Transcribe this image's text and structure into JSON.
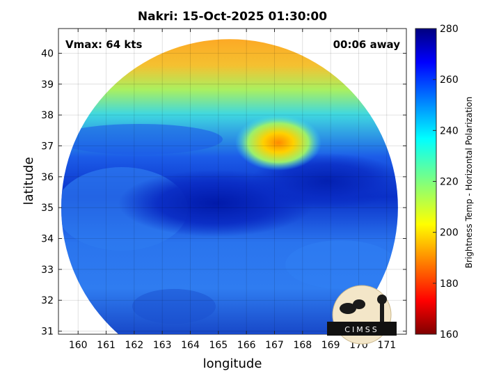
{
  "chart_data": {
    "type": "heatmap",
    "title": "Nakri: 15-Oct-2025 01:30:00",
    "xlabel": "longitude",
    "ylabel": "latitude",
    "xlim": [
      159.3,
      171.7
    ],
    "ylim": [
      30.9,
      40.8
    ],
    "xticks": [
      160,
      161,
      162,
      163,
      164,
      165,
      166,
      167,
      168,
      169,
      170,
      171
    ],
    "yticks": [
      31,
      32,
      33,
      34,
      35,
      36,
      37,
      38,
      39,
      40
    ],
    "grid": true,
    "annotations": {
      "top_left": "Vmax: 64 kts",
      "top_right": "00:06 away"
    },
    "colorbar": {
      "label": "Brightness Temp - Horizontal Polarization",
      "min": 160,
      "max": 280,
      "ticks": [
        160,
        180,
        200,
        220,
        240,
        260,
        280
      ],
      "colormap": "jet"
    },
    "swath": {
      "center": [
        165.4,
        35.0
      ],
      "radius_deg": 6.0
    },
    "regions": [
      {
        "label": "northern warm band",
        "lon": 166.0,
        "lat": 39.8,
        "value": 202
      },
      {
        "label": "central warm core",
        "lon": 166.8,
        "lat": 36.8,
        "value": 200
      },
      {
        "label": "cold band",
        "lon": 165.0,
        "lat": 35.2,
        "value": 268
      },
      {
        "label": "southern field",
        "lon": 166.0,
        "lat": 32.5,
        "value": 252
      }
    ]
  },
  "logo": {
    "text": "CIMSS"
  }
}
